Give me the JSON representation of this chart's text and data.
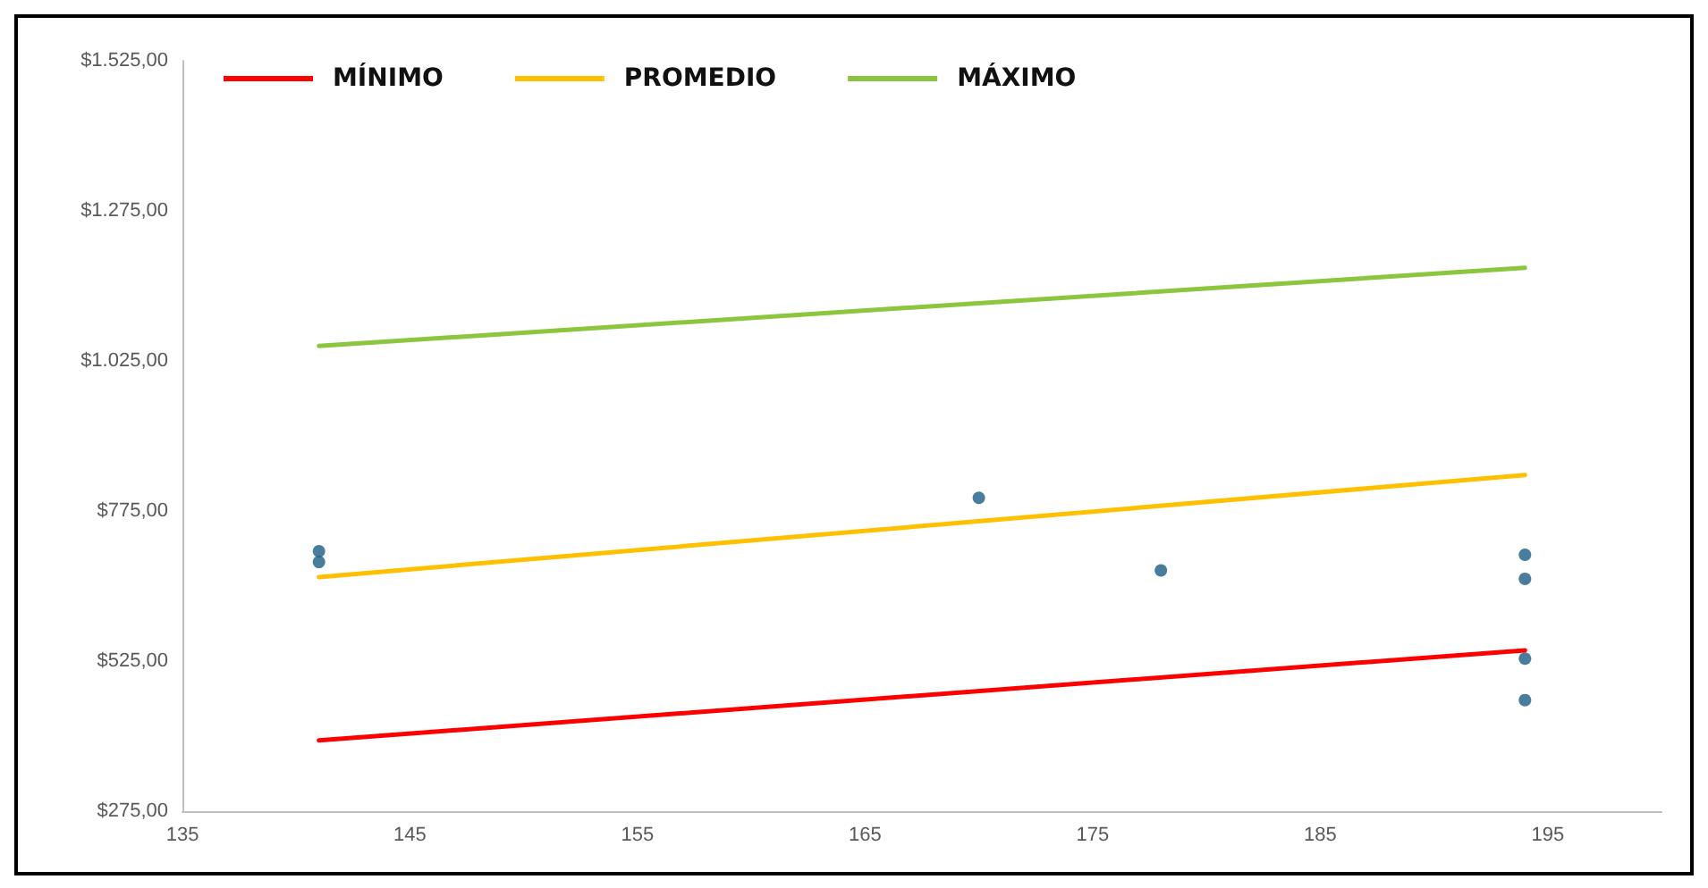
{
  "chart_data": {
    "type": "line",
    "xlim": [
      135,
      200
    ],
    "xticks": [
      135,
      145,
      155,
      165,
      175,
      185,
      195
    ],
    "ylim": [
      275,
      1525
    ],
    "yticks": [
      {
        "value": 275,
        "label": "$275,00"
      },
      {
        "value": 525,
        "label": "$525,00"
      },
      {
        "value": 775,
        "label": "$775,00"
      },
      {
        "value": 1025,
        "label": "$1.025,00"
      },
      {
        "value": 1275,
        "label": "$1.275,00"
      },
      {
        "value": 1525,
        "label": "$1.525,00"
      }
    ],
    "grid": false,
    "legend": "top left",
    "marker": "none",
    "line_style": "solid",
    "series": [
      {
        "name": "MÍNIMO",
        "color": "#ff0000",
        "x": [
          141,
          194
        ],
        "values": [
          393,
          543
        ]
      },
      {
        "name": "PROMEDIO",
        "color": "#ffc000",
        "x": [
          141,
          194
        ],
        "values": [
          665,
          835
        ]
      },
      {
        "name": "MÁXIMO",
        "color": "#8cc63f",
        "x": [
          141,
          194
        ],
        "values": [
          1050,
          1180
        ]
      },
      {
        "type": "scatter",
        "color": "#1a5c85",
        "marker": "circle",
        "x": [
          141,
          141,
          170,
          178,
          194,
          194,
          194,
          194
        ],
        "values": [
          708,
          690,
          797,
          676,
          702,
          662,
          529,
          460
        ]
      }
    ]
  }
}
